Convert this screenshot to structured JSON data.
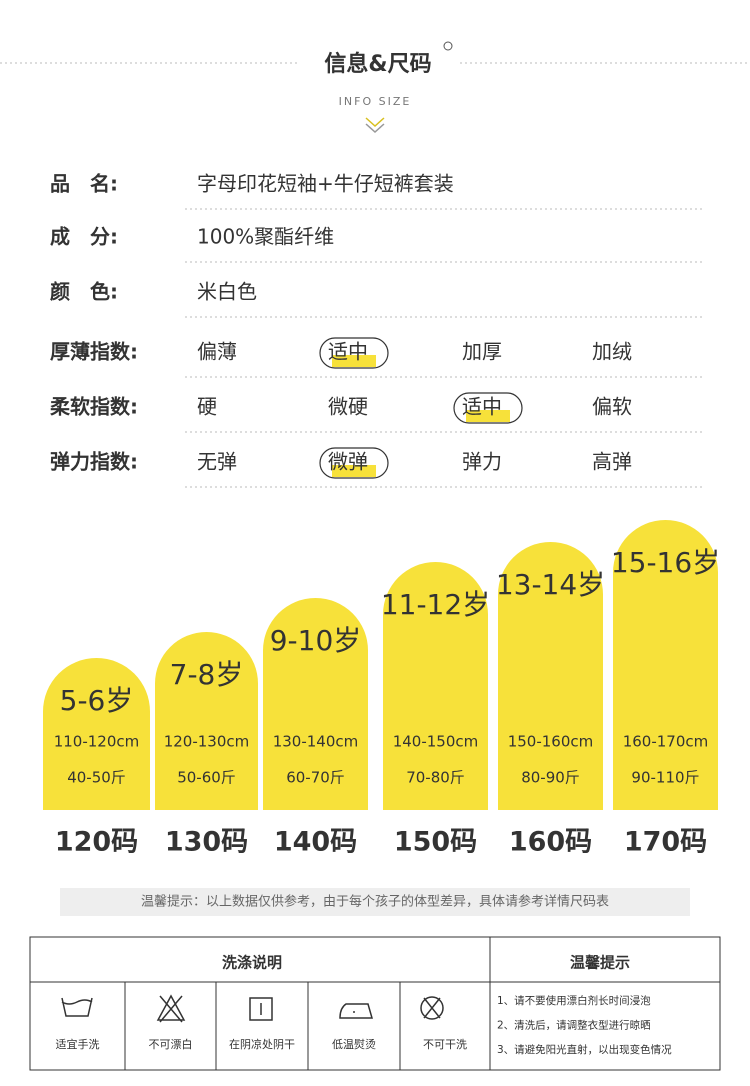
{
  "header": {
    "title": "信息&尺码",
    "subtitle": "INFO SIZE"
  },
  "info": [
    {
      "label": "品　名:",
      "value": "字母印花短袖+牛仔短裤套装"
    },
    {
      "label": "成　分:",
      "value": "100%聚酯纤维"
    },
    {
      "label": "颜　色:",
      "value": "米白色"
    }
  ],
  "indices": [
    {
      "label": "厚薄指数:",
      "options": [
        "偏薄",
        "适中",
        "加厚",
        "加绒"
      ],
      "selected": 1
    },
    {
      "label": "柔软指数:",
      "options": [
        "硬",
        "微硬",
        "适中",
        "偏软"
      ],
      "selected": 2
    },
    {
      "label": "弹力指数:",
      "options": [
        "无弹",
        "微弹",
        "弹力",
        "高弹"
      ],
      "selected": 1
    }
  ],
  "sizes": [
    {
      "age": "5-6岁",
      "height": "110-120cm",
      "weight": "40-50斤",
      "size": "120码"
    },
    {
      "age": "7-8岁",
      "height": "120-130cm",
      "weight": "50-60斤",
      "size": "130码"
    },
    {
      "age": "9-10岁",
      "height": "130-140cm",
      "weight": "60-70斤",
      "size": "140码"
    },
    {
      "age": "11-12岁",
      "height": "140-150cm",
      "weight": "70-80斤",
      "size": "150码"
    },
    {
      "age": "13-14岁",
      "height": "150-160cm",
      "weight": "80-90斤",
      "size": "160码"
    },
    {
      "age": "15-16岁",
      "height": "160-170cm",
      "weight": "90-110斤",
      "size": "170码"
    }
  ],
  "note": "温馨提示：以上数据仅供参考，由于每个孩子的体型差异，具体请参考详情尺码表",
  "care": {
    "wash_title": "洗涤说明",
    "tips_title": "温馨提示",
    "icons": [
      "适宜手洗",
      "不可漂白",
      "在阴凉处阴干",
      "低温熨烫",
      "不可干洗"
    ],
    "tips": [
      "1、请不要使用漂白剂长时间浸泡",
      "2、清洗后，请调整衣型进行晾晒",
      "3、请避免阳光直射，以出现变色情况"
    ]
  }
}
